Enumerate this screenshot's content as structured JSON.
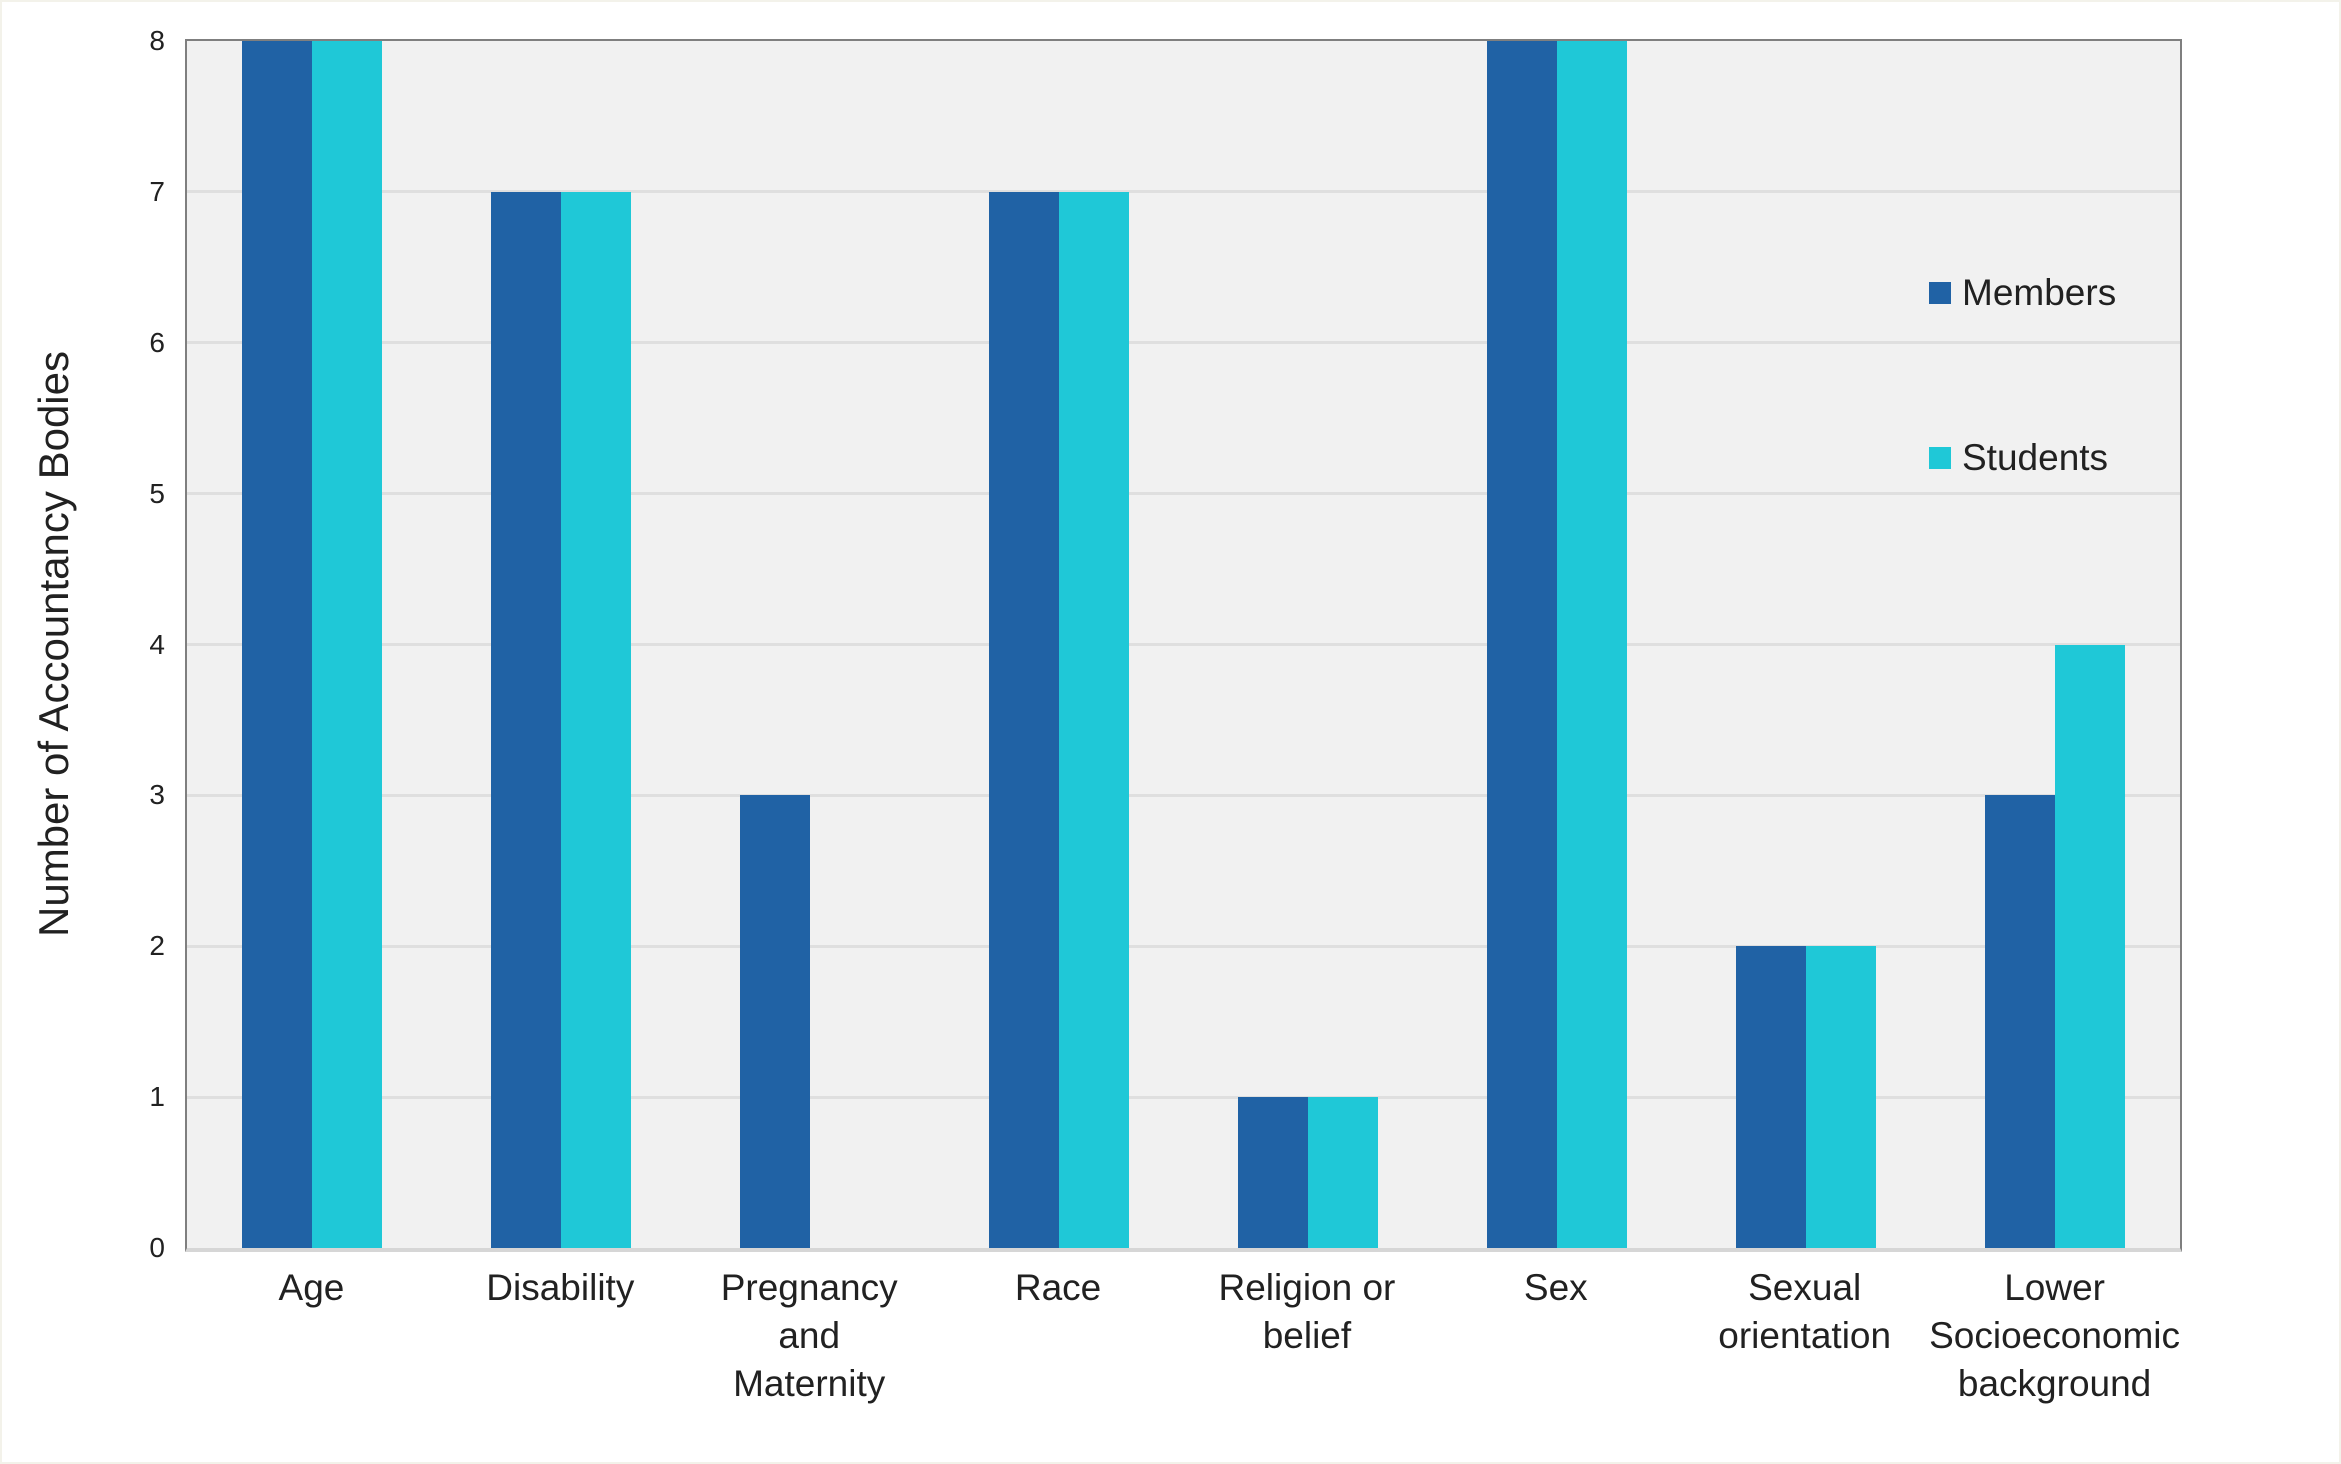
{
  "chart_data": {
    "type": "bar",
    "title": "",
    "ylabel": "Number of Accountancy Bodies",
    "xlabel": "",
    "categories": [
      "Age",
      "Disability",
      "Pregnancy and\nMaternity",
      "Race",
      "Religion or\nbelief",
      "Sex",
      "Sexual\norientation",
      "Lower\nSocioeconomic\nbackground"
    ],
    "series": [
      {
        "name": "Members",
        "color": "#2062A5",
        "values": [
          8,
          7,
          3,
          7,
          1,
          8,
          2,
          3
        ]
      },
      {
        "name": "Students",
        "color": "#1FC8D7",
        "values": [
          8,
          7,
          0,
          7,
          1,
          8,
          2,
          4
        ]
      }
    ],
    "ylim": [
      0,
      8
    ],
    "yticks": [
      0,
      1,
      2,
      3,
      4,
      5,
      6,
      7,
      8
    ],
    "grid": true,
    "legend_position": "inside-right",
    "colors": {
      "plot_background": "#F1F1F1",
      "gridline": "#DFDFDF",
      "axis_line": "#7F7F7F",
      "text": "#212121"
    }
  }
}
